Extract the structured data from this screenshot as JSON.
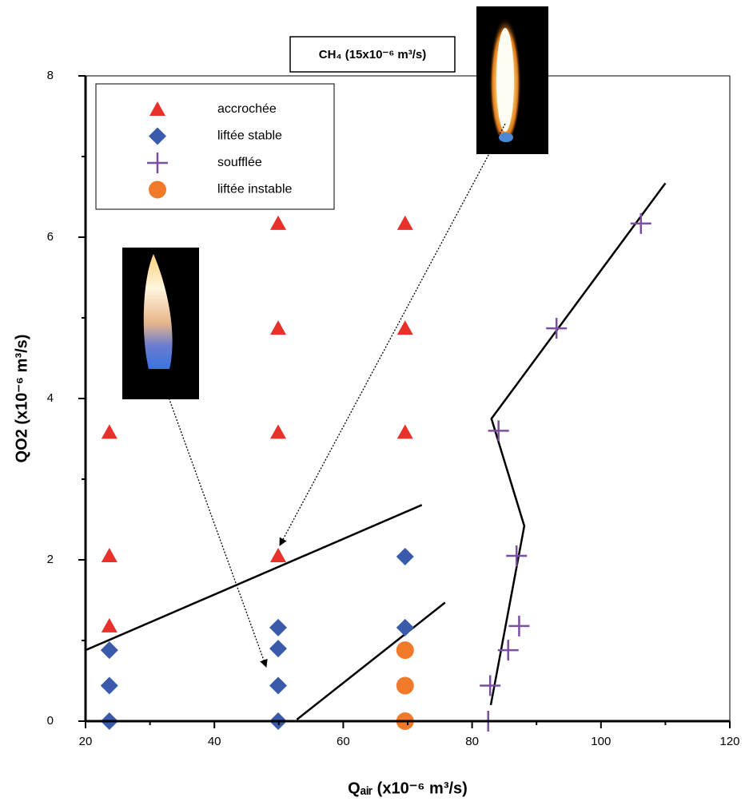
{
  "chart_data": {
    "type": "scatter",
    "title": "CH₄ (15x10⁻⁶ m³/s)",
    "xlabel": "Qₐᵢᵣ (x10⁻⁶ m³/s)",
    "ylabel": "QO2 (x10⁻⁶ m³/s)",
    "xlim": [
      20,
      120
    ],
    "xticks": [
      20,
      40,
      60,
      80,
      100,
      120
    ],
    "ylim": [
      0,
      8
    ],
    "yticks": [
      0,
      2,
      4,
      6,
      8
    ],
    "legend": "upper left",
    "series": [
      {
        "name": "accrochée",
        "color": "#e8312a",
        "marker": "triangle",
        "x": [
          23.7,
          23.7,
          23.7,
          49.9,
          49.9,
          49.9,
          49.9,
          69.6,
          69.6,
          69.6
        ],
        "values": [
          3.58,
          2.05,
          1.18,
          6.17,
          4.87,
          3.58,
          2.05,
          6.17,
          4.87,
          3.58
        ]
      },
      {
        "name": "liftée stable",
        "color": "#3a5bab",
        "marker": "diamond",
        "x": [
          23.7,
          23.7,
          23.7,
          49.9,
          49.9,
          49.9,
          49.9,
          69.6,
          69.6
        ],
        "values": [
          0.88,
          0.44,
          0,
          1.16,
          0.9,
          0.44,
          0,
          2.04,
          1.16
        ]
      },
      {
        "name": "soufflée",
        "color": "#7b4fa0",
        "marker": "plus",
        "x": [
          106.2,
          93.1,
          84.1,
          86.9,
          87.3,
          85.6,
          82.8,
          82.5
        ],
        "values": [
          6.17,
          4.87,
          3.6,
          2.05,
          1.18,
          0.88,
          0.44,
          0
        ]
      },
      {
        "name": "liftée instable",
        "color": "#f07a2a",
        "marker": "circle",
        "x": [
          69.6,
          69.6,
          69.6
        ],
        "values": [
          0.88,
          0.44,
          0
        ]
      }
    ],
    "boundary_lines": [
      {
        "x": [
          20,
          72.2
        ],
        "values": [
          0.88,
          2.68
        ]
      },
      {
        "x": [
          52.8,
          75.8
        ],
        "values": [
          0.02,
          1.47
        ]
      },
      {
        "x": [
          82.9,
          88.1,
          83.0,
          110
        ],
        "values": [
          0.2,
          2.42,
          3.75,
          6.67
        ]
      }
    ]
  }
}
